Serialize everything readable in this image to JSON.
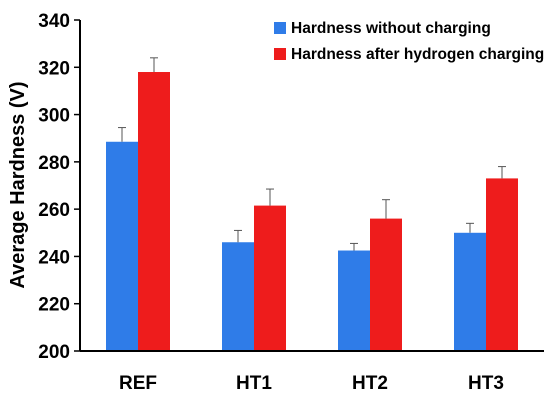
{
  "chart_data": {
    "type": "bar",
    "title": "",
    "xlabel": "",
    "ylabel": "Average Hardness (V)",
    "ylim": [
      200,
      340
    ],
    "ytick_step": 20,
    "categories": [
      "REF",
      "HT1",
      "HT2",
      "HT3"
    ],
    "series": [
      {
        "name": "Hardness without charging",
        "color": "#2f7ce8",
        "values": [
          288.5,
          246,
          242.5,
          250
        ],
        "errors": [
          6,
          5,
          3,
          4
        ]
      },
      {
        "name": "Hardness after hydrogen charging",
        "color": "#ee1c1c",
        "values": [
          318,
          261.5,
          256,
          273
        ],
        "errors": [
          6,
          7,
          8,
          5
        ]
      }
    ],
    "legend_position": "top-right",
    "grid": false
  }
}
